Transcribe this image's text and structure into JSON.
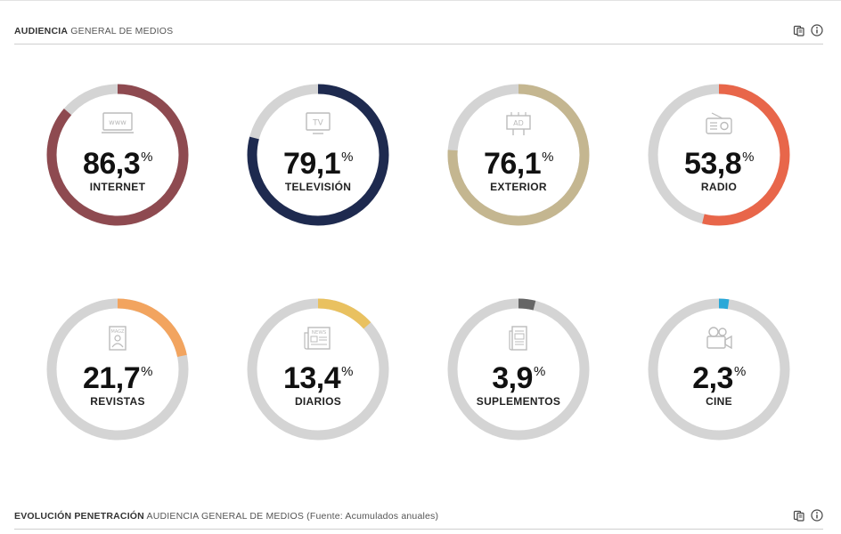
{
  "header_top": {
    "title_strong": "AUDIENCIA",
    "title_light": "GENERAL DE MEDIOS"
  },
  "header_bottom": {
    "title_strong": "EVOLUCIÓN PENETRACIÓN",
    "title_light": "AUDIENCIA GENERAL DE MEDIOS (Fuente: Acumulados anuales)"
  },
  "track_color": "#d4d4d4",
  "media": [
    {
      "id": "internet",
      "value": "86,3",
      "percent": 86.3,
      "unit": "%",
      "label": "INTERNET",
      "color": "#8e4a50",
      "icon": "www-icon"
    },
    {
      "id": "television",
      "value": "79,1",
      "percent": 79.1,
      "unit": "%",
      "label": "TELEVISIÓN",
      "color": "#1e2a4f",
      "icon": "tv-icon"
    },
    {
      "id": "exterior",
      "value": "76,1",
      "percent": 76.1,
      "unit": "%",
      "label": "EXTERIOR",
      "color": "#c4b690",
      "icon": "billboard-icon"
    },
    {
      "id": "radio",
      "value": "53,8",
      "percent": 53.8,
      "unit": "%",
      "label": "RADIO",
      "color": "#e8664a",
      "icon": "radio-icon"
    },
    {
      "id": "revistas",
      "value": "21,7",
      "percent": 21.7,
      "unit": "%",
      "label": "REVISTAS",
      "color": "#f2a45f",
      "icon": "magazine-icon"
    },
    {
      "id": "diarios",
      "value": "13,4",
      "percent": 13.4,
      "unit": "%",
      "label": "DIARIOS",
      "color": "#e9c160",
      "icon": "newspaper-icon"
    },
    {
      "id": "suplementos",
      "value": "3,9",
      "percent": 3.9,
      "unit": "%",
      "label": "SUPLEMENTOS",
      "color": "#666666",
      "icon": "supplement-icon"
    },
    {
      "id": "cine",
      "value": "2,3",
      "percent": 2.3,
      "unit": "%",
      "label": "CINE",
      "color": "#2aa8d8",
      "icon": "camera-icon"
    }
  ]
}
